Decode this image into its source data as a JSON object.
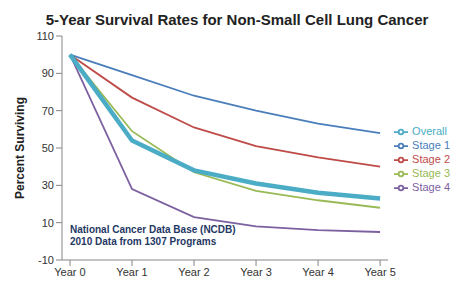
{
  "chart_data": {
    "type": "line",
    "title": "5-Year Survival Rates for Non-Small Cell Lung Cancer",
    "y_label": "Percent Surviving",
    "annotations": [
      "National Cancer Data Base (NCDB)",
      "2010 Data from 1307 Programs"
    ],
    "categories": [
      "Year 0",
      "Year 1",
      "Year 2",
      "Year 3",
      "Year 4",
      "Year 5"
    ],
    "series": [
      {
        "name": "Stage 1",
        "color": "#4a7ebb",
        "values": [
          100,
          89,
          78,
          70,
          63,
          58
        ]
      },
      {
        "name": "Stage 2",
        "color": "#be4b48",
        "values": [
          100,
          77,
          61,
          51,
          45,
          40
        ]
      },
      {
        "name": "Stage 3",
        "color": "#98b954",
        "values": [
          100,
          59,
          37,
          27,
          22,
          18
        ]
      },
      {
        "name": "Stage 4",
        "color": "#7d60a0",
        "values": [
          100,
          28,
          13,
          8,
          6,
          5
        ]
      },
      {
        "name": "Overall",
        "color": "#4bacc6",
        "values": [
          100,
          54,
          38,
          31,
          26,
          23
        ],
        "line_style": "thick"
      }
    ],
    "ylim": [
      -10,
      110
    ],
    "yticks": [
      -10,
      10,
      30,
      50,
      70,
      90,
      110
    ],
    "grid": false,
    "legend": "right"
  }
}
